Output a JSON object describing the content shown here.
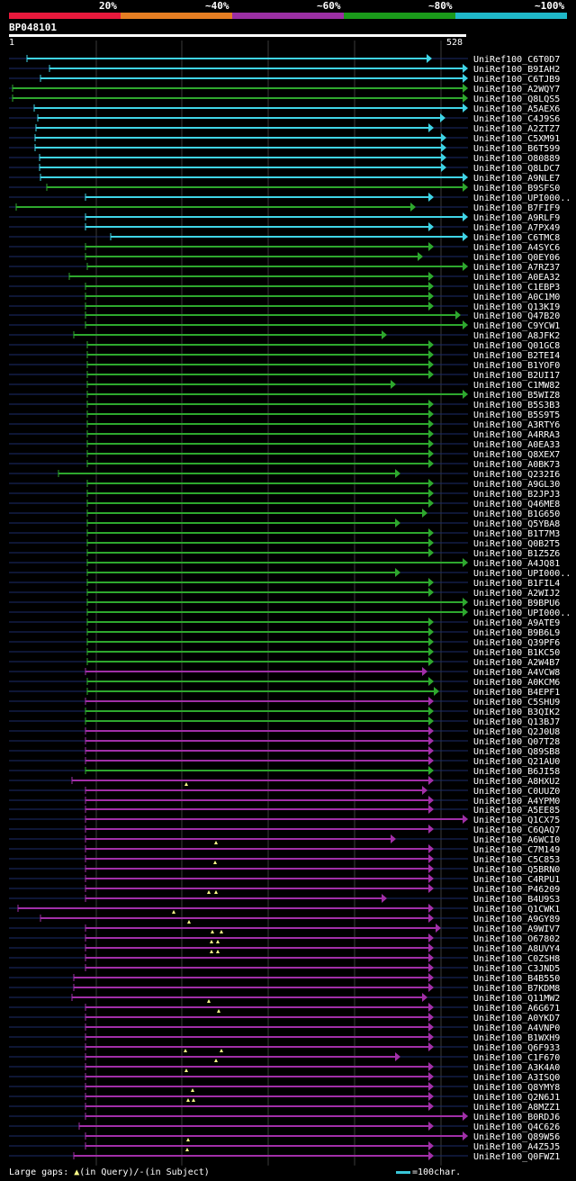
{
  "legend": {
    "items": [
      {
        "label": "20%",
        "color": "#e8193c"
      },
      {
        "label": "~40%",
        "color": "#e67e22"
      },
      {
        "label": "~60%",
        "color": "#9b2fa3"
      },
      {
        "label": "~80%",
        "color": "#1a9a1a"
      },
      {
        "label": "~100%",
        "color": "#1fb8c8"
      }
    ]
  },
  "query": {
    "name": "BP048101",
    "start": "1",
    "end": "528"
  },
  "colors": {
    "cyan": "#3fd4e6",
    "green": "#2ea82e",
    "magenta": "#a12fa8",
    "guide": "#1c2b6a",
    "gridline": "#3a3a3a",
    "gap_marker": "#ffff88"
  },
  "hits": [
    {
      "name": "UniRef100_C6T0D7",
      "color": "cyan",
      "start": 30,
      "end": 480,
      "arrow": "right"
    },
    {
      "name": "UniRef100_B9IAH2",
      "color": "cyan",
      "start": 55,
      "end": 520,
      "arrow": "right"
    },
    {
      "name": "UniRef100_C6TJB9",
      "color": "cyan",
      "start": 45,
      "end": 520,
      "arrow": "right"
    },
    {
      "name": "UniRef100_A2WQY7",
      "color": "green",
      "start": 14,
      "end": 520,
      "arrow": "right"
    },
    {
      "name": "UniRef100_Q8LQS5",
      "color": "green",
      "start": 14,
      "end": 520,
      "arrow": "right"
    },
    {
      "name": "UniRef100_A5AEX6",
      "color": "cyan",
      "start": 38,
      "end": 520,
      "arrow": "right"
    },
    {
      "name": "UniRef100_C4J9S6",
      "color": "cyan",
      "start": 42,
      "end": 495,
      "arrow": "right"
    },
    {
      "name": "UniRef100_A2ZTZ7",
      "color": "cyan",
      "start": 40,
      "end": 482,
      "arrow": "right"
    },
    {
      "name": "UniRef100_C5XM91",
      "color": "cyan",
      "start": 39,
      "end": 496,
      "arrow": "right"
    },
    {
      "name": "UniRef100_B6T599",
      "color": "cyan",
      "start": 39,
      "end": 496,
      "arrow": "right"
    },
    {
      "name": "UniRef100_O80889",
      "color": "cyan",
      "start": 44,
      "end": 496,
      "arrow": "right"
    },
    {
      "name": "UniRef100_Q8LDC7",
      "color": "cyan",
      "start": 44,
      "end": 496,
      "arrow": "right"
    },
    {
      "name": "UniRef100_A9NLE7",
      "color": "cyan",
      "start": 45,
      "end": 520,
      "arrow": "right"
    },
    {
      "name": "UniRef100_B9SFS0",
      "color": "green",
      "start": 52,
      "end": 520,
      "arrow": "right"
    },
    {
      "name": "UniRef100_UPI000..",
      "color": "cyan",
      "start": 95,
      "end": 482,
      "arrow": "right"
    },
    {
      "name": "UniRef100_B7FIF9",
      "color": "green",
      "start": 18,
      "end": 462,
      "arrow": "right"
    },
    {
      "name": "UniRef100_A9RLF9",
      "color": "cyan",
      "start": 95,
      "end": 520,
      "arrow": "right"
    },
    {
      "name": "UniRef100_A7PX49",
      "color": "cyan",
      "start": 95,
      "end": 482,
      "arrow": "right"
    },
    {
      "name": "UniRef100_C6TMC8",
      "color": "cyan",
      "start": 123,
      "end": 520,
      "arrow": "right"
    },
    {
      "name": "UniRef100_A4SYC6",
      "color": "green",
      "start": 95,
      "end": 482,
      "arrow": "right"
    },
    {
      "name": "UniRef100_Q0EY06",
      "color": "green",
      "start": 95,
      "end": 470,
      "arrow": "right"
    },
    {
      "name": "UniRef100_A7RZ37",
      "color": "green",
      "start": 97,
      "end": 520,
      "arrow": "right"
    },
    {
      "name": "UniRef100_A0EA32",
      "color": "green",
      "start": 77,
      "end": 482,
      "arrow": "right"
    },
    {
      "name": "UniRef100_C1EBP3",
      "color": "green",
      "start": 95,
      "end": 482,
      "arrow": "right"
    },
    {
      "name": "UniRef100_A0C1M0",
      "color": "green",
      "start": 95,
      "end": 482,
      "arrow": "right"
    },
    {
      "name": "UniRef100_Q13KI9",
      "color": "green",
      "start": 95,
      "end": 482,
      "arrow": "right"
    },
    {
      "name": "UniRef100_Q47B20",
      "color": "green",
      "start": 95,
      "end": 512,
      "arrow": "right"
    },
    {
      "name": "UniRef100_C9YCW1",
      "color": "green",
      "start": 95,
      "end": 520,
      "arrow": "right"
    },
    {
      "name": "UniRef100_A8JFK2",
      "color": "green",
      "start": 82,
      "end": 430,
      "arrow": "right"
    },
    {
      "name": "UniRef100_Q01GC8",
      "color": "green",
      "start": 97,
      "end": 482,
      "arrow": "right"
    },
    {
      "name": "UniRef100_B2TEI4",
      "color": "green",
      "start": 97,
      "end": 482,
      "arrow": "right"
    },
    {
      "name": "UniRef100_B1YOF0",
      "color": "green",
      "start": 97,
      "end": 482,
      "arrow": "right"
    },
    {
      "name": "UniRef100_B2UI17",
      "color": "green",
      "start": 97,
      "end": 482,
      "arrow": "right"
    },
    {
      "name": "UniRef100_C1MW82",
      "color": "green",
      "start": 97,
      "end": 440,
      "arrow": "right"
    },
    {
      "name": "UniRef100_B5WIZ8",
      "color": "green",
      "start": 97,
      "end": 520,
      "arrow": "right"
    },
    {
      "name": "UniRef100_B5S3B3",
      "color": "green",
      "start": 97,
      "end": 482,
      "arrow": "right"
    },
    {
      "name": "UniRef100_B5S9T5",
      "color": "green",
      "start": 97,
      "end": 482,
      "arrow": "right"
    },
    {
      "name": "UniRef100_A3RTY6",
      "color": "green",
      "start": 97,
      "end": 482,
      "arrow": "right"
    },
    {
      "name": "UniRef100_A4RRA3",
      "color": "green",
      "start": 97,
      "end": 482,
      "arrow": "right"
    },
    {
      "name": "UniRef100_A0EA33",
      "color": "green",
      "start": 97,
      "end": 482,
      "arrow": "right"
    },
    {
      "name": "UniRef100_Q8XEX7",
      "color": "green",
      "start": 97,
      "end": 482,
      "arrow": "right"
    },
    {
      "name": "UniRef100_A0BK73",
      "color": "green",
      "start": 97,
      "end": 482,
      "arrow": "right"
    },
    {
      "name": "UniRef100_Q232I6",
      "color": "green",
      "start": 65,
      "end": 445,
      "arrow": "right"
    },
    {
      "name": "UniRef100_A9GL30",
      "color": "green",
      "start": 97,
      "end": 482,
      "arrow": "right"
    },
    {
      "name": "UniRef100_B2JPJ3",
      "color": "green",
      "start": 97,
      "end": 482,
      "arrow": "right"
    },
    {
      "name": "UniRef100_Q46ME8",
      "color": "green",
      "start": 97,
      "end": 482,
      "arrow": "right"
    },
    {
      "name": "UniRef100_B1G650",
      "color": "green",
      "start": 97,
      "end": 475,
      "arrow": "right"
    },
    {
      "name": "UniRef100_Q5YBA8",
      "color": "green",
      "start": 97,
      "end": 445,
      "arrow": "right"
    },
    {
      "name": "UniRef100_B1T7M3",
      "color": "green",
      "start": 97,
      "end": 482,
      "arrow": "right"
    },
    {
      "name": "UniRef100_Q0B2T5",
      "color": "green",
      "start": 97,
      "end": 482,
      "arrow": "right"
    },
    {
      "name": "UniRef100_B1Z5Z6",
      "color": "green",
      "start": 97,
      "end": 482,
      "arrow": "right"
    },
    {
      "name": "UniRef100_A4JQ81",
      "color": "green",
      "start": 97,
      "end": 520,
      "arrow": "right"
    },
    {
      "name": "UniRef100_UPI000..",
      "color": "green",
      "start": 97,
      "end": 445,
      "arrow": "right"
    },
    {
      "name": "UniRef100_B1FIL4",
      "color": "green",
      "start": 97,
      "end": 482,
      "arrow": "right"
    },
    {
      "name": "UniRef100_A2WIJ2",
      "color": "green",
      "start": 97,
      "end": 482,
      "arrow": "right"
    },
    {
      "name": "UniRef100_B9BPU6",
      "color": "green",
      "start": 97,
      "end": 520,
      "arrow": "right"
    },
    {
      "name": "UniRef100_UPI000..",
      "color": "green",
      "start": 97,
      "end": 520,
      "arrow": "right"
    },
    {
      "name": "UniRef100_A9ATE9",
      "color": "green",
      "start": 97,
      "end": 482,
      "arrow": "right"
    },
    {
      "name": "UniRef100_B9B6L9",
      "color": "green",
      "start": 97,
      "end": 482,
      "arrow": "right"
    },
    {
      "name": "UniRef100_Q39PF6",
      "color": "green",
      "start": 97,
      "end": 482,
      "arrow": "right"
    },
    {
      "name": "UniRef100_B1KC50",
      "color": "green",
      "start": 97,
      "end": 482,
      "arrow": "right"
    },
    {
      "name": "UniRef100_A2W4B7",
      "color": "green",
      "start": 97,
      "end": 482,
      "arrow": "right"
    },
    {
      "name": "UniRef100_A4VCW8",
      "color": "magenta",
      "start": 95,
      "end": 475,
      "arrow": "right"
    },
    {
      "name": "UniRef100_A0KCM6",
      "color": "green",
      "start": 97,
      "end": 482,
      "arrow": "right"
    },
    {
      "name": "UniRef100_B4EPF1",
      "color": "green",
      "start": 97,
      "end": 488,
      "arrow": "right"
    },
    {
      "name": "UniRef100_C5SHU9",
      "color": "magenta",
      "start": 95,
      "end": 482,
      "arrow": "right"
    },
    {
      "name": "UniRef100_B3QIK2",
      "color": "green",
      "start": 95,
      "end": 482,
      "arrow": "right"
    },
    {
      "name": "UniRef100_Q13BJ7",
      "color": "green",
      "start": 95,
      "end": 482,
      "arrow": "right"
    },
    {
      "name": "UniRef100_Q2J0U8",
      "color": "magenta",
      "start": 95,
      "end": 482,
      "arrow": "right"
    },
    {
      "name": "UniRef100_Q07T28",
      "color": "magenta",
      "start": 95,
      "end": 482,
      "arrow": "right"
    },
    {
      "name": "UniRef100_Q89SB8",
      "color": "magenta",
      "start": 95,
      "end": 482,
      "arrow": "right"
    },
    {
      "name": "UniRef100_Q21AU0",
      "color": "magenta",
      "start": 95,
      "end": 482,
      "arrow": "right"
    },
    {
      "name": "UniRef100_B6JI58",
      "color": "green",
      "start": 95,
      "end": 482,
      "arrow": "right"
    },
    {
      "name": "UniRef100_A8HXU2",
      "color": "magenta",
      "start": 80,
      "end": 482,
      "arrow": "right",
      "gaps": [
        207
      ]
    },
    {
      "name": "UniRef100_C0UUZ0",
      "color": "magenta",
      "start": 95,
      "end": 475,
      "arrow": "right"
    },
    {
      "name": "UniRef100_A4YPM0",
      "color": "magenta",
      "start": 95,
      "end": 482,
      "arrow": "right"
    },
    {
      "name": "UniRef100_A5EE85",
      "color": "magenta",
      "start": 95,
      "end": 482,
      "arrow": "right"
    },
    {
      "name": "UniRef100_Q1CX75",
      "color": "magenta",
      "start": 95,
      "end": 520,
      "arrow": "right"
    },
    {
      "name": "UniRef100_C6QAQ7",
      "color": "magenta",
      "start": 95,
      "end": 482,
      "arrow": "right"
    },
    {
      "name": "UniRef100_A6WCI0",
      "color": "magenta",
      "start": 95,
      "end": 440,
      "arrow": "right",
      "gaps": [
        240
      ]
    },
    {
      "name": "UniRef100_C7M149",
      "color": "magenta",
      "start": 95,
      "end": 482,
      "arrow": "right"
    },
    {
      "name": "UniRef100_C5C853",
      "color": "magenta",
      "start": 95,
      "end": 482,
      "arrow": "right",
      "gaps": [
        239
      ]
    },
    {
      "name": "UniRef100_Q5BRN0",
      "color": "magenta",
      "start": 95,
      "end": 482,
      "arrow": "right"
    },
    {
      "name": "UniRef100_C4RPU1",
      "color": "magenta",
      "start": 95,
      "end": 482,
      "arrow": "right"
    },
    {
      "name": "UniRef100_P46209",
      "color": "magenta",
      "start": 95,
      "end": 482,
      "arrow": "right",
      "gaps": [
        232,
        240
      ]
    },
    {
      "name": "UniRef100_B4U9S3",
      "color": "magenta",
      "start": 95,
      "end": 430,
      "arrow": "right"
    },
    {
      "name": "UniRef100_Q1CWK1",
      "color": "magenta",
      "start": 20,
      "end": 482,
      "arrow": "right",
      "gaps": [
        193
      ]
    },
    {
      "name": "UniRef100_A9GY89",
      "color": "magenta",
      "start": 45,
      "end": 482,
      "arrow": "right",
      "gaps": [
        210
      ]
    },
    {
      "name": "UniRef100_A9WIV7",
      "color": "magenta",
      "start": 95,
      "end": 490,
      "arrow": "right",
      "gaps": [
        236,
        246
      ]
    },
    {
      "name": "UniRef100_O67802",
      "color": "magenta",
      "start": 95,
      "end": 482,
      "arrow": "right",
      "gaps": [
        235,
        242
      ]
    },
    {
      "name": "UniRef100_A8UVY4",
      "color": "magenta",
      "start": 95,
      "end": 482,
      "arrow": "right",
      "gaps": [
        235,
        242
      ]
    },
    {
      "name": "UniRef100_C0ZSH8",
      "color": "magenta",
      "start": 95,
      "end": 482,
      "arrow": "right"
    },
    {
      "name": "UniRef100_C3JND5",
      "color": "magenta",
      "start": 95,
      "end": 482,
      "arrow": "right"
    },
    {
      "name": "UniRef100_B4B550",
      "color": "magenta",
      "start": 82,
      "end": 482,
      "arrow": "right"
    },
    {
      "name": "UniRef100_B7KDM8",
      "color": "magenta",
      "start": 82,
      "end": 482,
      "arrow": "right"
    },
    {
      "name": "UniRef100_Q11MW2",
      "color": "magenta",
      "start": 80,
      "end": 475,
      "arrow": "right",
      "gaps": [
        232
      ]
    },
    {
      "name": "UniRef100_A6G671",
      "color": "magenta",
      "start": 95,
      "end": 482,
      "arrow": "right",
      "gaps": [
        243
      ]
    },
    {
      "name": "UniRef100_A0YKD7",
      "color": "magenta",
      "start": 95,
      "end": 482,
      "arrow": "right"
    },
    {
      "name": "UniRef100_A4VNP0",
      "color": "magenta",
      "start": 95,
      "end": 482,
      "arrow": "right"
    },
    {
      "name": "UniRef100_B1WXH9",
      "color": "magenta",
      "start": 95,
      "end": 482,
      "arrow": "right"
    },
    {
      "name": "UniRef100_Q6F933",
      "color": "magenta",
      "start": 95,
      "end": 482,
      "arrow": "right",
      "gaps": [
        206,
        246
      ]
    },
    {
      "name": "UniRef100_C1F670",
      "color": "magenta",
      "start": 95,
      "end": 445,
      "arrow": "right",
      "gaps": [
        240
      ]
    },
    {
      "name": "UniRef100_A3K4A0",
      "color": "magenta",
      "start": 95,
      "end": 482,
      "arrow": "right",
      "gaps": [
        207
      ]
    },
    {
      "name": "UniRef100_A3ISQ0",
      "color": "magenta",
      "start": 95,
      "end": 482,
      "arrow": "right"
    },
    {
      "name": "UniRef100_Q8YMY8",
      "color": "magenta",
      "start": 95,
      "end": 482,
      "arrow": "right",
      "gaps": [
        214
      ]
    },
    {
      "name": "UniRef100_Q2N6J1",
      "color": "magenta",
      "start": 95,
      "end": 482,
      "arrow": "right",
      "gaps": [
        209,
        215
      ]
    },
    {
      "name": "UniRef100_A8MZZ1",
      "color": "magenta",
      "start": 95,
      "end": 482,
      "arrow": "right"
    },
    {
      "name": "UniRef100_B0RDJ6",
      "color": "magenta",
      "start": 95,
      "end": 520,
      "arrow": "right"
    },
    {
      "name": "UniRef100_Q4C626",
      "color": "magenta",
      "start": 88,
      "end": 482,
      "arrow": "right"
    },
    {
      "name": "UniRef100_Q89W56",
      "color": "magenta",
      "start": 95,
      "end": 520,
      "arrow": "right",
      "gaps": [
        209
      ]
    },
    {
      "name": "UniRef100_A4Z5J5",
      "color": "magenta",
      "start": 95,
      "end": 482,
      "arrow": "right",
      "gaps": [
        208
      ]
    },
    {
      "name": "UniRef100_Q0FWZ1",
      "color": "magenta",
      "start": 82,
      "end": 482,
      "arrow": "right"
    }
  ],
  "footer": {
    "gaps_prefix": "Large gaps:",
    "gap_query_marker": "▲",
    "gap_query_text": "(in Query)/",
    "gap_subject_marker": "-",
    "gap_subject_text": "(in Subject)",
    "scale_text": "=100char."
  }
}
